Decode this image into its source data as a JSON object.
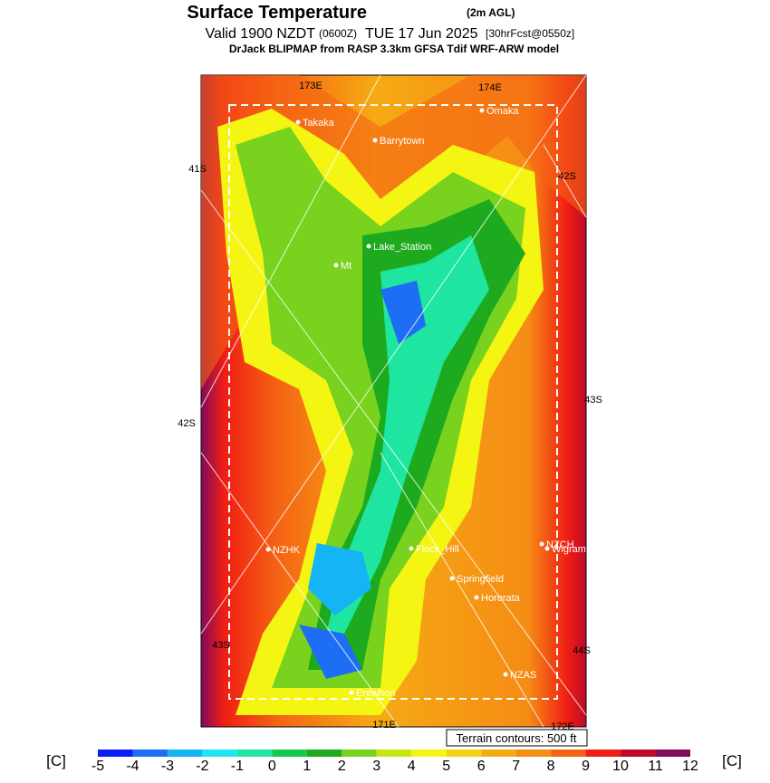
{
  "header": {
    "title": "Surface Temperature",
    "title_note": "(2m AGL)",
    "line2": "Valid 1900 NZDT",
    "line2_note": "(0600Z)",
    "line2_date": "TUE 17 Jun 2025",
    "line2_fcst": "[30hrFcst@0550z]",
    "line3": "DrJack BLIPMAP from RASP 3.3km GFSA Tdif WRF-ARW model"
  },
  "map": {
    "places": [
      "Takaka",
      "Barrytown",
      "Omaka",
      "Lake_Station",
      "Mt",
      "NZHK",
      "Flock_Hill",
      "NZCH",
      "Wigram",
      "Springfield",
      "Hororata",
      "NZAS",
      "Erewhon"
    ],
    "grid_labels": [
      "173E",
      "174E",
      "41S",
      "42S",
      "42S",
      "43S",
      "43S",
      "44S",
      "171E",
      "172E"
    ],
    "note": "Terrain contours: 500 ft"
  },
  "colorbar": {
    "unit_left": "[C]",
    "unit_right": "[C]",
    "ticks": [
      -5,
      -4,
      -3,
      -2,
      -1,
      0,
      1,
      2,
      3,
      4,
      5,
      6,
      7,
      8,
      9,
      10,
      11,
      12
    ],
    "colors": [
      "#0a1ef5",
      "#1e6ef5",
      "#14b4f5",
      "#1ee6f5",
      "#1ee6a0",
      "#14c850",
      "#1eaa1e",
      "#78d21e",
      "#c8e614",
      "#f5f514",
      "#f5d214",
      "#f5aa14",
      "#f58c14",
      "#f56414",
      "#f01e14",
      "#be0a28",
      "#820a5a"
    ]
  }
}
